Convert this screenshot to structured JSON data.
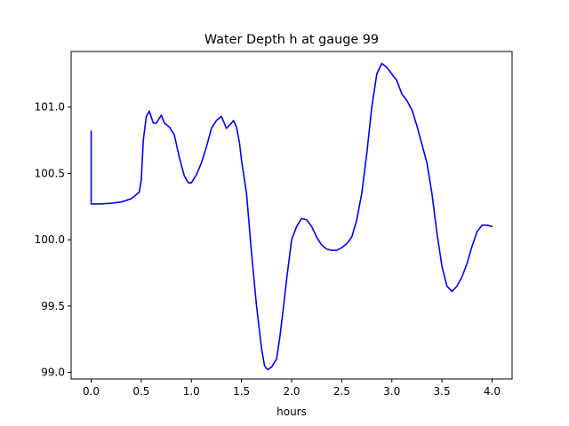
{
  "chart_data": {
    "type": "line",
    "title": "Water Depth h at gauge 99",
    "xlabel": "hours",
    "ylabel": "",
    "xlim": [
      -0.2,
      4.2
    ],
    "ylim": [
      98.95,
      101.42
    ],
    "xticks": [
      0.0,
      0.5,
      1.0,
      1.5,
      2.0,
      2.5,
      3.0,
      3.5,
      4.0
    ],
    "xtick_labels": [
      "0.0",
      "0.5",
      "1.0",
      "1.5",
      "2.0",
      "2.5",
      "3.0",
      "3.5",
      "4.0"
    ],
    "yticks": [
      99.0,
      99.5,
      100.0,
      100.5,
      101.0
    ],
    "ytick_labels": [
      "99.0",
      "99.5",
      "100.0",
      "100.5",
      "101.0"
    ],
    "grid": false,
    "series": [
      {
        "color": "#0000ff",
        "x": [
          0.0,
          0.0,
          0.1,
          0.2,
          0.3,
          0.4,
          0.45,
          0.48,
          0.5,
          0.52,
          0.55,
          0.58,
          0.62,
          0.65,
          0.7,
          0.73,
          0.78,
          0.83,
          0.88,
          0.93,
          0.97,
          1.0,
          1.05,
          1.1,
          1.15,
          1.2,
          1.25,
          1.3,
          1.35,
          1.4,
          1.42,
          1.45,
          1.48,
          1.5,
          1.55,
          1.6,
          1.65,
          1.7,
          1.73,
          1.76,
          1.8,
          1.85,
          1.88,
          1.92,
          1.95,
          2.0,
          2.05,
          2.1,
          2.15,
          2.2,
          2.25,
          2.3,
          2.35,
          2.4,
          2.45,
          2.5,
          2.55,
          2.6,
          2.65,
          2.7,
          2.75,
          2.8,
          2.85,
          2.9,
          2.95,
          3.0,
          3.05,
          3.1,
          3.15,
          3.2,
          3.25,
          3.3,
          3.35,
          3.4,
          3.45,
          3.5,
          3.55,
          3.6,
          3.65,
          3.7,
          3.75,
          3.8,
          3.85,
          3.9,
          3.95,
          4.0
        ],
        "values": [
          100.82,
          100.27,
          100.27,
          100.275,
          100.285,
          100.31,
          100.34,
          100.36,
          100.45,
          100.75,
          100.93,
          100.97,
          100.88,
          100.88,
          100.94,
          100.88,
          100.85,
          100.79,
          100.62,
          100.48,
          100.43,
          100.43,
          100.49,
          100.58,
          100.7,
          100.84,
          100.9,
          100.93,
          100.84,
          100.88,
          100.9,
          100.85,
          100.73,
          100.6,
          100.35,
          99.9,
          99.5,
          99.18,
          99.05,
          99.02,
          99.04,
          99.1,
          99.25,
          99.5,
          99.7,
          100.0,
          100.1,
          100.16,
          100.15,
          100.1,
          100.02,
          99.96,
          99.93,
          99.92,
          99.92,
          99.94,
          99.97,
          100.02,
          100.15,
          100.35,
          100.65,
          101.0,
          101.25,
          101.33,
          101.3,
          101.25,
          101.2,
          101.1,
          101.05,
          100.98,
          100.86,
          100.72,
          100.58,
          100.35,
          100.05,
          99.8,
          99.65,
          99.61,
          99.65,
          99.72,
          99.82,
          99.95,
          100.06,
          100.11,
          100.11,
          100.1
        ]
      }
    ]
  }
}
